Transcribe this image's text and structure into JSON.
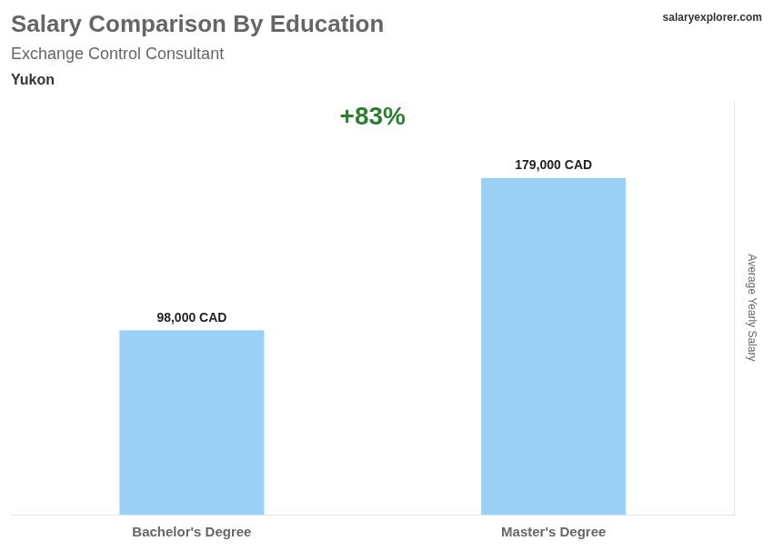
{
  "chart_data": {
    "type": "bar",
    "title": "Salary Comparison By Education",
    "subtitle": "Exchange Control Consultant",
    "annotations": [
      "Yukon",
      "salaryexplorer.com",
      "+83%"
    ],
    "y_label": "Average Yearly Salary",
    "categories": [
      "Bachelor's Degree",
      "Master's Degree"
    ],
    "values": [
      98000,
      179000
    ],
    "value_labels": [
      "98,000 CAD",
      "179,000 CAD"
    ],
    "data_labels": true,
    "ylim": [
      0,
      220000
    ],
    "grid": false,
    "tick_labels": "x"
  }
}
